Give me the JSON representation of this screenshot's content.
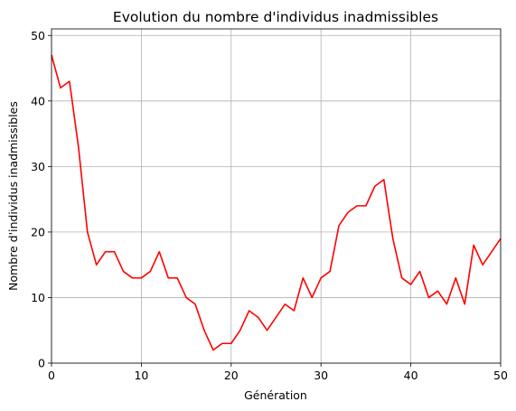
{
  "chart_data": {
    "type": "line",
    "title": "Evolution du nombre d'individus inadmissibles",
    "xlabel": "Génération",
    "ylabel": "Nombre d'individus inadmissibles",
    "xlim": [
      0,
      50
    ],
    "ylim": [
      0,
      51
    ],
    "xticks": [
      0,
      10,
      20,
      30,
      40,
      50
    ],
    "yticks": [
      0,
      10,
      20,
      30,
      40,
      50
    ],
    "grid": true,
    "series": [
      {
        "color": "#ff0000",
        "x": [
          0,
          1,
          2,
          3,
          4,
          5,
          6,
          7,
          8,
          9,
          10,
          11,
          12,
          13,
          14,
          15,
          16,
          17,
          18,
          19,
          20,
          21,
          22,
          23,
          24,
          25,
          26,
          27,
          28,
          29,
          30,
          31,
          32,
          33,
          34,
          35,
          36,
          37,
          38,
          39,
          40,
          41,
          42,
          43,
          44,
          45,
          46,
          47,
          48,
          49,
          50
        ],
        "y": [
          47,
          42,
          43,
          33,
          20,
          15,
          17,
          17,
          14,
          13,
          13,
          14,
          17,
          13,
          13,
          10,
          9,
          5,
          2,
          3,
          3,
          5,
          8,
          7,
          5,
          7,
          9,
          8,
          13,
          10,
          13,
          14,
          21,
          23,
          24,
          24,
          27,
          28,
          19,
          13,
          12,
          14,
          10,
          11,
          9,
          13,
          9,
          18,
          15,
          17,
          19
        ]
      }
    ]
  }
}
